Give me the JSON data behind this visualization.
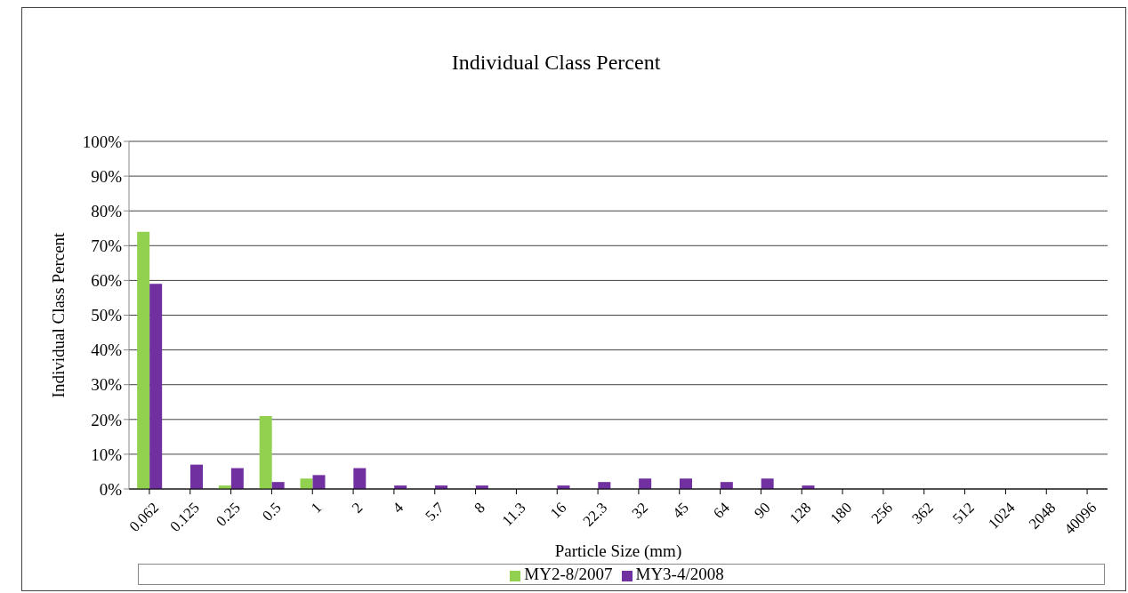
{
  "chart_data": {
    "type": "bar",
    "title": "Individual Class Percent",
    "xlabel": "Particle Size (mm)",
    "ylabel": "Individual Class Percent",
    "categories": [
      "0.062",
      "0.125",
      "0.25",
      "0.5",
      "1",
      "2",
      "4",
      "5.7",
      "8",
      "11.3",
      "16",
      "22.3",
      "32",
      "45",
      "64",
      "90",
      "128",
      "180",
      "256",
      "362",
      "512",
      "1024",
      "2048",
      "40096"
    ],
    "series": [
      {
        "name": "MY2-8/2007",
        "color": "#92d050",
        "values": [
          74,
          0,
          1,
          21,
          3,
          0,
          0,
          0,
          0,
          0,
          0,
          0,
          0,
          0,
          0,
          0,
          0,
          0,
          0,
          0,
          0,
          0,
          0,
          0
        ]
      },
      {
        "name": "MY3-4/2008",
        "color": "#7030a0",
        "values": [
          59,
          7,
          6,
          2,
          4,
          6,
          1,
          1,
          1,
          0,
          1,
          2,
          3,
          3,
          2,
          3,
          1,
          0,
          0,
          0,
          0,
          0,
          0,
          0
        ]
      }
    ],
    "ylim": [
      0,
      100
    ],
    "yticks": [
      {
        "value": 0,
        "label": "0%"
      },
      {
        "value": 10,
        "label": "10%"
      },
      {
        "value": 20,
        "label": "20%"
      },
      {
        "value": 30,
        "label": "30%"
      },
      {
        "value": 40,
        "label": "40%"
      },
      {
        "value": 50,
        "label": "50%"
      },
      {
        "value": 60,
        "label": "60%"
      },
      {
        "value": 70,
        "label": "70%"
      },
      {
        "value": 80,
        "label": "80%"
      },
      {
        "value": 90,
        "label": "90%"
      },
      {
        "value": 100,
        "label": "100%"
      }
    ],
    "grid": "y",
    "legend": "bottom"
  }
}
